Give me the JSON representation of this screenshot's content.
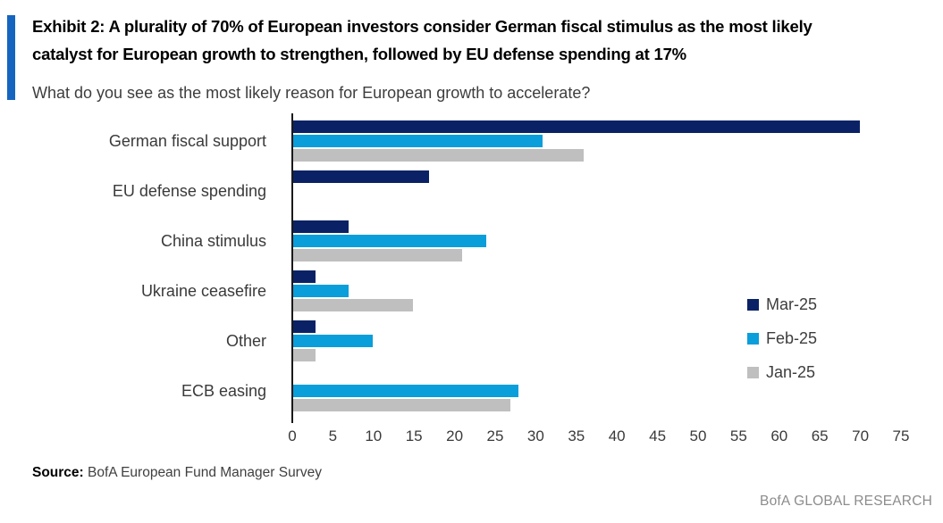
{
  "header": {
    "title_lines": [
      "Exhibit 2: A plurality of 70% of European investors consider German fiscal stimulus as the most likely",
      "catalyst for European growth to strengthen, followed by EU defense spending at 17%"
    ],
    "question": "What do you see as the most likely reason for European growth to accelerate?"
  },
  "chart_data": {
    "type": "bar",
    "orientation": "horizontal",
    "title": "What do you see as the most likely reason for European growth to accelerate?",
    "categories": [
      "German fiscal support",
      "EU defense spending",
      "China stimulus",
      "Ukraine ceasefire",
      "Other",
      "ECB easing"
    ],
    "series": [
      {
        "name": "Mar-25",
        "color": "#0A2265",
        "values": [
          70,
          17,
          7,
          3,
          3,
          0
        ]
      },
      {
        "name": "Feb-25",
        "color": "#0A9EDA",
        "values": [
          31,
          0,
          24,
          7,
          10,
          28
        ]
      },
      {
        "name": "Jan-25",
        "color": "#BFBFBF",
        "values": [
          36,
          0,
          21,
          15,
          3,
          27
        ]
      }
    ],
    "xlim": [
      0,
      75
    ],
    "x_ticks": [
      0,
      5,
      10,
      15,
      20,
      25,
      30,
      35,
      40,
      45,
      50,
      55,
      60,
      65,
      70,
      75
    ],
    "legend_position": "right",
    "grid": false
  },
  "footer": {
    "source_label": "Source:",
    "source_text": " BofA European Fund Manager Survey",
    "branding": "BofA GLOBAL RESEARCH"
  },
  "colors": {
    "accent_bar": "#1565C0",
    "axis": "#1a1a1a"
  }
}
